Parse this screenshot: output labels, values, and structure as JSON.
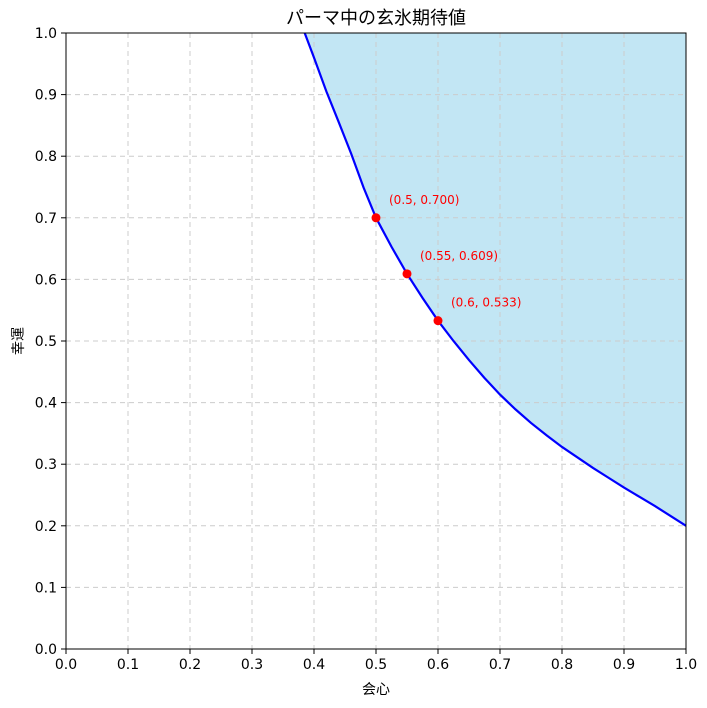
{
  "chart_data": {
    "type": "line",
    "title": "パーマ中の玄氷期待値",
    "xlabel": "会心",
    "ylabel": "幸運",
    "xlim": [
      0.0,
      1.0
    ],
    "ylim": [
      0.0,
      1.0
    ],
    "xticks": [
      "0.0",
      "0.1",
      "0.2",
      "0.3",
      "0.4",
      "0.5",
      "0.6",
      "0.7",
      "0.8",
      "0.9",
      "1.0"
    ],
    "yticks": [
      "0.0",
      "0.1",
      "0.2",
      "0.3",
      "0.4",
      "0.5",
      "0.6",
      "0.7",
      "0.8",
      "0.9",
      "1.0"
    ],
    "grid": true,
    "curve": {
      "color": "#0000ff",
      "points": [
        [
          0.385,
          1.0
        ],
        [
          0.4,
          0.96
        ],
        [
          0.42,
          0.905
        ],
        [
          0.44,
          0.855
        ],
        [
          0.46,
          0.804
        ],
        [
          0.48,
          0.749
        ],
        [
          0.5,
          0.7
        ],
        [
          0.525,
          0.653
        ],
        [
          0.55,
          0.609
        ],
        [
          0.575,
          0.57
        ],
        [
          0.6,
          0.533
        ],
        [
          0.625,
          0.5
        ],
        [
          0.65,
          0.469
        ],
        [
          0.675,
          0.44
        ],
        [
          0.7,
          0.413
        ],
        [
          0.725,
          0.389
        ],
        [
          0.75,
          0.367
        ],
        [
          0.775,
          0.347
        ],
        [
          0.8,
          0.328
        ],
        [
          0.825,
          0.311
        ],
        [
          0.85,
          0.294
        ],
        [
          0.875,
          0.278
        ],
        [
          0.9,
          0.262
        ],
        [
          0.925,
          0.247
        ],
        [
          0.95,
          0.232
        ],
        [
          0.975,
          0.216
        ],
        [
          1.0,
          0.2
        ]
      ]
    },
    "fill_color": "#c2e6f4",
    "fill_region": "above curve",
    "marked_points": {
      "color": "#ff0000",
      "points": [
        {
          "x": 0.5,
          "y": 0.7,
          "label": "(0.5, 0.700)"
        },
        {
          "x": 0.55,
          "y": 0.609,
          "label": "(0.55, 0.609)"
        },
        {
          "x": 0.6,
          "y": 0.533,
          "label": "(0.6, 0.533)"
        }
      ]
    }
  }
}
